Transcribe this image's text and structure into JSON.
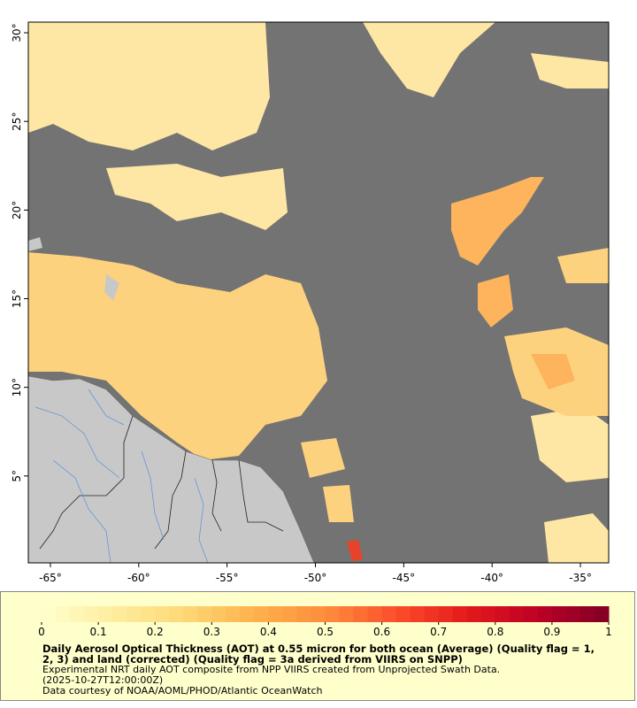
{
  "map": {
    "lon_range": [
      -66.25,
      -33.4
    ],
    "lat_range": [
      0.1,
      30.6
    ],
    "lon_ticks": [
      {
        "value": -65,
        "label": "-65°"
      },
      {
        "value": -60,
        "label": "-60°"
      },
      {
        "value": -55,
        "label": "-55°"
      },
      {
        "value": -50,
        "label": "-50°"
      },
      {
        "value": -45,
        "label": "-45°"
      },
      {
        "value": -40,
        "label": "-40°"
      },
      {
        "value": -35,
        "label": "-35°"
      }
    ],
    "lat_ticks": [
      {
        "value": 5,
        "label": "5°"
      },
      {
        "value": 10,
        "label": "10°"
      },
      {
        "value": 15,
        "label": "15°"
      },
      {
        "value": 20,
        "label": "20°"
      },
      {
        "value": 25,
        "label": "25°"
      },
      {
        "value": 30,
        "label": "30°"
      }
    ]
  },
  "colorbar": {
    "range": [
      0,
      1
    ],
    "ticks": [
      0,
      0.1,
      0.2,
      0.3,
      0.4,
      0.5,
      0.6,
      0.7,
      0.8,
      0.9,
      1
    ]
  },
  "caption": {
    "title": "Daily Aerosol Optical Thickness (AOT) at 0.55 micron for both ocean (Average) (Quality flag = 1, 2, 3) and land (corrected) (Quality flag = 3a derived from VIIRS on SNPP)",
    "lines": [
      "Experimental NRT daily AOT composite from NPP VIIRS created from Unprojected Swath Data.",
      "(2025-10-27T12:00:00Z)",
      "Data courtesy of NOAA/AOML/PHOD/Atlantic OceanWatch"
    ]
  }
}
